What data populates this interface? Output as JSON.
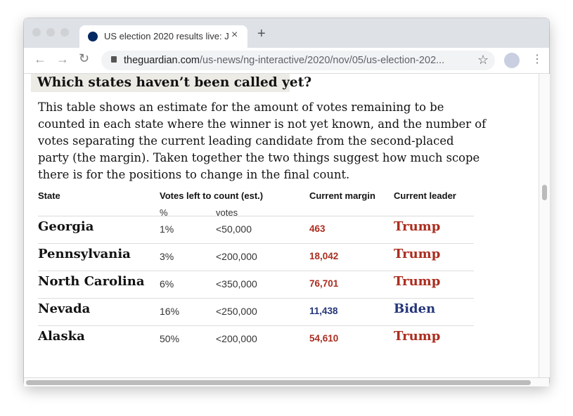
{
  "browser": {
    "tab_title": "US election 2020 results live: J",
    "url_domain": "theguardian.com",
    "url_path": "/us-news/ng-interactive/2020/nov/05/us-election-202..."
  },
  "article": {
    "heading": "Which states haven’t been called yet?",
    "intro": "This table shows an estimate for the amount of votes remaining to be counted in each state where the winner is not yet known, and the number of votes separating the current leading candidate from the second-placed party (the margin). Taken together the two things suggest how much scope there is for the positions to change in the final count."
  },
  "table": {
    "headers": [
      "State",
      "Votes left to count (est.)",
      "Current margin",
      "Current leader"
    ],
    "subheaders": [
      "%",
      "votes"
    ],
    "rows": [
      {
        "state": "Georgia",
        "pct": "1%",
        "votes": "<50,000",
        "margin": "463",
        "leader": "Trump",
        "color": "#ab2d1f"
      },
      {
        "state": "Pennsylvania",
        "pct": "3%",
        "votes": "<200,000",
        "margin": "18,042",
        "leader": "Trump",
        "color": "#ab2d1f"
      },
      {
        "state": "North Carolina",
        "pct": "6%",
        "votes": "<350,000",
        "margin": "76,701",
        "leader": "Trump",
        "color": "#ab2d1f"
      },
      {
        "state": "Nevada",
        "pct": "16%",
        "votes": "<250,000",
        "margin": "11,438",
        "leader": "Biden",
        "color": "#25357a"
      },
      {
        "state": "Alaska",
        "pct": "50%",
        "votes": "<200,000",
        "margin": "54,610",
        "leader": "Trump",
        "color": "#ab2d1f"
      }
    ]
  }
}
